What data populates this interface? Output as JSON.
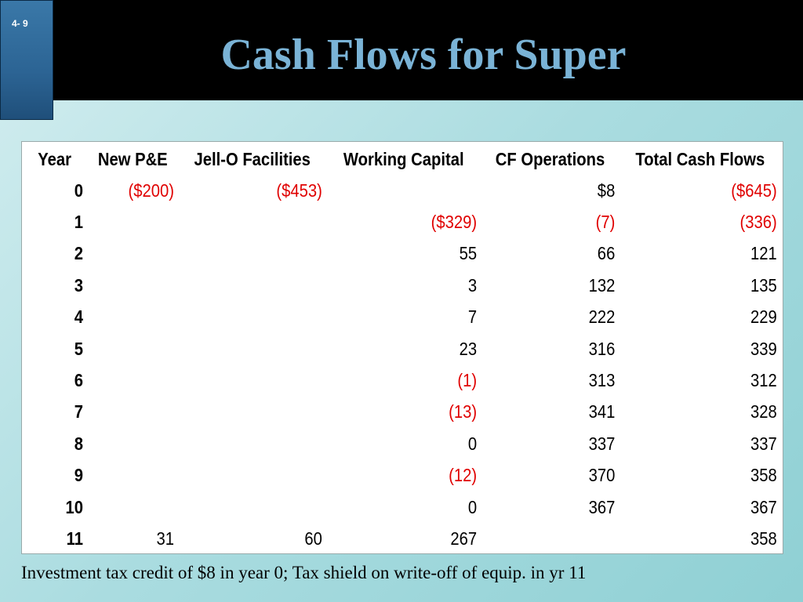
{
  "slide_number": "4- 9",
  "title": "Cash Flows for Super",
  "table": {
    "headers": [
      "Year",
      "New P&E",
      "Jell-O Facilities",
      "Working Capital",
      "CF Operations",
      "Total Cash Flows"
    ],
    "rows": [
      [
        "0",
        "($200)",
        "($453)",
        "",
        "$8",
        "($645)"
      ],
      [
        "1",
        "",
        "",
        "($329)",
        "(7)",
        "(336)"
      ],
      [
        "2",
        "",
        "",
        "55",
        "66",
        "121"
      ],
      [
        "3",
        "",
        "",
        "3",
        "132",
        "135"
      ],
      [
        "4",
        "",
        "",
        "7",
        "222",
        "229"
      ],
      [
        "5",
        "",
        "",
        "23",
        "316",
        "339"
      ],
      [
        "6",
        "",
        "",
        "(1)",
        "313",
        "312"
      ],
      [
        "7",
        "",
        "",
        "(13)",
        "341",
        "328"
      ],
      [
        "8",
        "",
        "",
        "0",
        "337",
        "337"
      ],
      [
        "9",
        "",
        "",
        "(12)",
        "370",
        "358"
      ],
      [
        "10",
        "",
        "",
        "0",
        "367",
        "367"
      ],
      [
        "11",
        "31",
        "60",
        "267",
        "",
        "358"
      ]
    ],
    "negative_color": "#e00000"
  },
  "footnote": "Investment tax credit of $8 in year 0; Tax shield on write-off of equip. in yr 11"
}
